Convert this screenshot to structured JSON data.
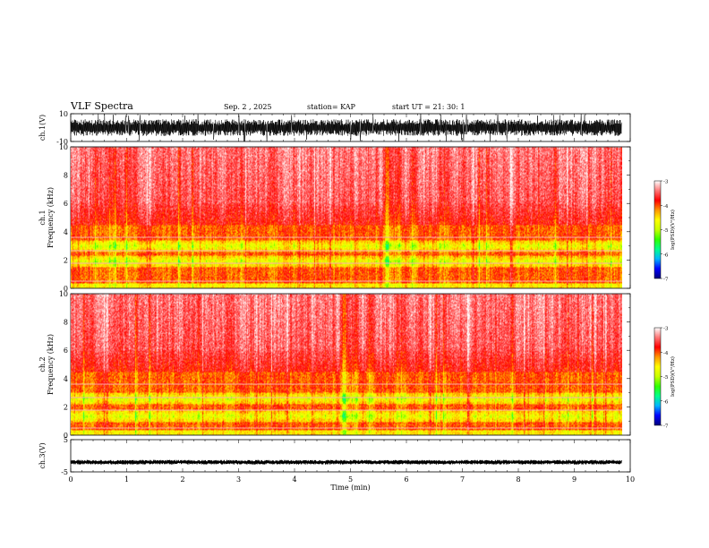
{
  "header": {
    "title": "VLF Spectra",
    "date": "Sep. 2 , 2025",
    "station": "station= KAP",
    "start": "start UT =  21: 30: 1"
  },
  "chart_data": [
    {
      "type": "line",
      "panel": "ch1-waveform",
      "ylabel": "ch.1(V)",
      "ylim": [
        -10,
        10
      ],
      "yticks": [
        -10,
        10
      ],
      "xlim": [
        0,
        10
      ],
      "x_extent_min": [
        0,
        9.85
      ],
      "approx_center": 0,
      "approx_band": [
        -6,
        6
      ]
    },
    {
      "type": "heatmap",
      "panel": "ch1-spectrogram",
      "ylabel": "Frequency (kHz)",
      "channel_label": "ch.1",
      "ylim": [
        0,
        10
      ],
      "yticks": [
        0,
        2,
        4,
        6,
        8,
        10
      ],
      "xlim": [
        0,
        10
      ],
      "x_extent_min": [
        0,
        9.85
      ],
      "colorbar": {
        "label": "log(PSD)(V²/Hz)",
        "range": [
          -7,
          -3
        ],
        "ticks": [
          -3,
          -4,
          -5,
          -6,
          -7
        ]
      },
      "intense_bands_khz": [
        [
          1.5,
          2.3
        ],
        [
          2.6,
          3.4
        ]
      ]
    },
    {
      "type": "heatmap",
      "panel": "ch2-spectrogram",
      "ylabel": "Frequency (kHz)",
      "channel_label": "ch.2",
      "ylim": [
        0,
        10
      ],
      "yticks": [
        0,
        2,
        4,
        6,
        8,
        10
      ],
      "xlim": [
        0,
        10
      ],
      "x_extent_min": [
        0,
        9.85
      ],
      "colorbar": {
        "label": "log(PSD)(V²/Hz)",
        "range": [
          -7,
          -3
        ],
        "ticks": [
          -3,
          -4,
          -5,
          -6,
          -7
        ]
      },
      "intense_bands_khz": [
        [
          0.9,
          1.8
        ],
        [
          2.2,
          3.0
        ]
      ]
    },
    {
      "type": "line",
      "panel": "ch3-waveform",
      "ylabel": "ch.3(V)",
      "ylim": [
        -5,
        5
      ],
      "yticks": [
        -5,
        5
      ],
      "xlim": [
        0,
        10
      ],
      "x_extent_min": [
        0,
        9.85
      ],
      "approx_center": -2,
      "approx_band": [
        -2.7,
        -1.3
      ]
    }
  ],
  "xaxis": {
    "label": "Time (min)",
    "ticks": [
      0,
      1,
      2,
      3,
      4,
      5,
      6,
      7,
      8,
      9,
      10
    ]
  },
  "colors": {
    "colormap": [
      "#00007a",
      "#0000ff",
      "#00b4ff",
      "#00ff8c",
      "#32ff00",
      "#c8ff00",
      "#ffff00",
      "#ff9600",
      "#ff0000",
      "#ff7777",
      "#ffffff"
    ]
  }
}
